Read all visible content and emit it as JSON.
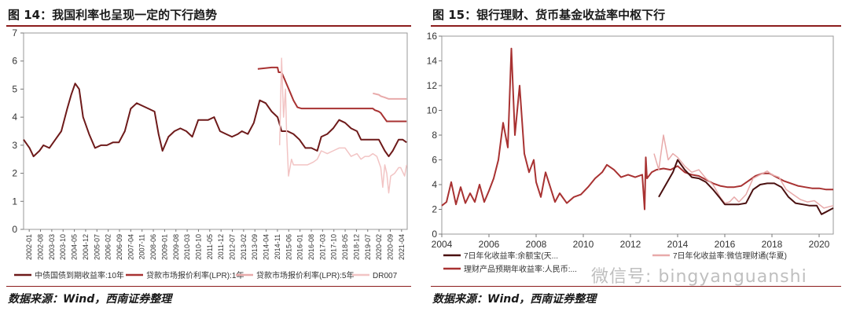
{
  "left": {
    "title": "图 14：我国利率也呈现一定的下行趋势",
    "source": "数据来源：Wind，西南证券整理"
  },
  "right": {
    "title": "图 15：银行理财、货币基金收益率中枢下行",
    "source": "数据来源：Wind，西南证券整理"
  },
  "watermark": "微信号: bingyanguanshi",
  "colors": {
    "accent": "#8b1c1c",
    "dark_red": "#6e1a1a",
    "red": "#a83232",
    "pink": "#e8aaaa",
    "light_pink": "#f2c4c4"
  },
  "chart_data": [
    {
      "type": "line",
      "ylim": [
        0,
        7
      ],
      "yticks": [
        0,
        1,
        2,
        3,
        4,
        5,
        6,
        7
      ],
      "xlim": [
        2002.0,
        2021.33
      ],
      "xtick_labels": [
        "2002-01",
        "2002-08",
        "2003-03",
        "2003-10",
        "2004-05",
        "2004-12",
        "2005-07",
        "2006-02",
        "2006-09",
        "2007-04",
        "2007-11",
        "2008-06",
        "2009-01",
        "2009-08",
        "2010-03",
        "2010-10",
        "2011-05",
        "2011-12",
        "2012-07",
        "2013-02",
        "2013-09",
        "2014-04",
        "2014-11",
        "2015-06",
        "2016-01",
        "2016-08",
        "2017-03",
        "2017-10",
        "2018-05",
        "2018-12",
        "2019-07",
        "2020-02",
        "2020-09",
        "2021-04"
      ],
      "series": [
        {
          "name": "中债国债到期收益率:10年",
          "color": "#6e1a1a",
          "width": 2,
          "x": [
            2002.0,
            2002.3,
            2002.5,
            2002.8,
            2003.0,
            2003.3,
            2003.6,
            2003.9,
            2004.2,
            2004.4,
            2004.6,
            2004.8,
            2005.0,
            2005.3,
            2005.6,
            2005.9,
            2006.2,
            2006.5,
            2006.8,
            2007.1,
            2007.4,
            2007.7,
            2008.0,
            2008.3,
            2008.6,
            2008.8,
            2009.0,
            2009.3,
            2009.6,
            2009.9,
            2010.2,
            2010.5,
            2010.8,
            2011.0,
            2011.3,
            2011.6,
            2011.9,
            2012.2,
            2012.5,
            2012.8,
            2013.0,
            2013.3,
            2013.6,
            2013.9,
            2014.2,
            2014.5,
            2014.8,
            2015.0,
            2015.3,
            2015.6,
            2015.9,
            2016.2,
            2016.5,
            2016.8,
            2017.0,
            2017.3,
            2017.6,
            2017.9,
            2018.2,
            2018.5,
            2018.8,
            2019.0,
            2019.3,
            2019.6,
            2019.9,
            2020.2,
            2020.4,
            2020.6,
            2020.9,
            2021.1,
            2021.3
          ],
          "y": [
            3.2,
            2.9,
            2.6,
            2.8,
            3.0,
            2.9,
            3.2,
            3.5,
            4.3,
            4.8,
            5.2,
            5.0,
            4.0,
            3.4,
            2.9,
            3.0,
            3.0,
            3.1,
            3.1,
            3.5,
            4.3,
            4.5,
            4.4,
            4.3,
            4.2,
            3.4,
            2.8,
            3.3,
            3.5,
            3.6,
            3.5,
            3.3,
            3.9,
            3.9,
            3.9,
            4.0,
            3.5,
            3.4,
            3.3,
            3.4,
            3.5,
            3.4,
            3.8,
            4.6,
            4.5,
            4.2,
            4.0,
            3.5,
            3.5,
            3.4,
            3.2,
            2.9,
            2.9,
            2.8,
            3.3,
            3.4,
            3.6,
            3.9,
            3.8,
            3.6,
            3.5,
            3.2,
            3.2,
            3.2,
            3.2,
            2.8,
            2.6,
            2.8,
            3.2,
            3.2,
            3.1
          ]
        },
        {
          "name": "贷款市场报价利率(LPR):1年",
          "color": "#a83232",
          "width": 2,
          "x": [
            2013.8,
            2014.5,
            2014.8,
            2014.85,
            2015.0,
            2015.15,
            2015.3,
            2015.45,
            2015.6,
            2015.8,
            2016.0,
            2019.6,
            2019.7,
            2019.9,
            2020.0,
            2020.1,
            2020.3,
            2021.3
          ],
          "y": [
            5.72,
            5.77,
            5.77,
            5.6,
            5.6,
            5.35,
            5.1,
            4.85,
            4.6,
            4.35,
            4.31,
            4.31,
            4.25,
            4.2,
            4.15,
            4.05,
            3.85,
            3.85
          ]
        },
        {
          "name": "贷款市场报价利率(LPR):5年",
          "color": "#e8aaaa",
          "width": 2,
          "x": [
            2019.6,
            2019.9,
            2020.0,
            2020.2,
            2020.4,
            2021.3
          ],
          "y": [
            4.85,
            4.8,
            4.75,
            4.7,
            4.65,
            4.65
          ]
        },
        {
          "name": "DR007",
          "color": "#f2c4c4",
          "width": 1.5,
          "x": [
            2014.9,
            2015.0,
            2015.1,
            2015.2,
            2015.25,
            2015.35,
            2015.5,
            2015.6,
            2015.8,
            2016.0,
            2016.3,
            2016.6,
            2016.8,
            2017.0,
            2017.3,
            2017.6,
            2017.9,
            2018.2,
            2018.5,
            2018.8,
            2019.0,
            2019.2,
            2019.4,
            2019.6,
            2019.8,
            2020.0,
            2020.1,
            2020.2,
            2020.3,
            2020.4,
            2020.5,
            2020.7,
            2020.9,
            2021.0,
            2021.2,
            2021.3
          ],
          "y": [
            3.0,
            6.1,
            4.0,
            5.0,
            3.5,
            1.9,
            2.5,
            2.3,
            2.3,
            2.3,
            2.3,
            2.4,
            2.5,
            2.8,
            2.7,
            2.8,
            2.9,
            2.9,
            2.6,
            2.7,
            2.5,
            2.6,
            2.6,
            2.7,
            2.6,
            2.2,
            1.5,
            2.3,
            2.0,
            1.3,
            1.9,
            2.0,
            2.2,
            2.2,
            1.9,
            2.3
          ]
        }
      ]
    },
    {
      "type": "line",
      "ylim": [
        0,
        16
      ],
      "yticks": [
        0,
        2,
        4,
        6,
        8,
        10,
        12,
        14,
        16
      ],
      "xlim": [
        2004.0,
        2020.6
      ],
      "xtick_labels": [
        "2004",
        "2006",
        "2008",
        "2010",
        "2012",
        "2014",
        "2016",
        "2018",
        "2020"
      ],
      "xtick_values": [
        2004,
        2006,
        2008,
        2010,
        2012,
        2014,
        2016,
        2018,
        2020
      ],
      "series": [
        {
          "name": "7日年化收益率:余额宝(天...",
          "color": "#4a1010",
          "width": 2,
          "x": [
            2013.2,
            2013.5,
            2013.8,
            2014.0,
            2014.3,
            2014.6,
            2014.9,
            2015.2,
            2015.5,
            2015.8,
            2016.0,
            2016.3,
            2016.6,
            2016.9,
            2017.2,
            2017.5,
            2017.8,
            2018.1,
            2018.4,
            2018.7,
            2019.0,
            2019.3,
            2019.6,
            2019.9,
            2020.1,
            2020.3,
            2020.6
          ],
          "y": [
            3.0,
            4.0,
            5.0,
            6.0,
            5.2,
            4.6,
            4.5,
            4.2,
            3.6,
            2.9,
            2.4,
            2.4,
            2.4,
            2.5,
            3.6,
            4.0,
            4.1,
            4.1,
            3.8,
            3.0,
            2.5,
            2.4,
            2.3,
            2.3,
            1.6,
            1.8,
            2.1
          ]
        },
        {
          "name": "7日年化收益率:微信理财通(华夏)",
          "color": "#e8aaaa",
          "width": 1.5,
          "x": [
            2013.0,
            2013.2,
            2013.4,
            2013.6,
            2013.8,
            2014.0,
            2014.3,
            2014.6,
            2014.9,
            2015.2,
            2015.5,
            2015.8,
            2016.0,
            2016.2,
            2016.4,
            2016.6,
            2016.9,
            2017.2,
            2017.5,
            2017.8,
            2018.0,
            2018.3,
            2018.6,
            2018.9,
            2019.2,
            2019.5,
            2019.8,
            2020.0,
            2020.2,
            2020.4,
            2020.6
          ],
          "y": [
            6.5,
            5.2,
            8.0,
            6.0,
            6.5,
            6.2,
            5.5,
            5.0,
            5.2,
            4.5,
            4.0,
            3.0,
            2.5,
            2.6,
            3.0,
            2.6,
            3.2,
            4.5,
            4.8,
            5.1,
            4.8,
            4.6,
            3.6,
            3.2,
            2.8,
            2.6,
            2.7,
            2.4,
            2.1,
            2.2,
            2.3
          ]
        },
        {
          "name": "理财产品预期年收益率:人民币:...",
          "color": "#a83232",
          "width": 2,
          "x": [
            2004.0,
            2004.2,
            2004.4,
            2004.6,
            2004.8,
            2005.0,
            2005.2,
            2005.4,
            2005.6,
            2005.8,
            2006.0,
            2006.2,
            2006.4,
            2006.6,
            2006.8,
            2006.95,
            2007.1,
            2007.3,
            2007.5,
            2007.7,
            2007.9,
            2008.0,
            2008.2,
            2008.4,
            2008.6,
            2008.8,
            2009.0,
            2009.3,
            2009.6,
            2009.9,
            2010.2,
            2010.5,
            2010.8,
            2011.0,
            2011.3,
            2011.6,
            2011.9,
            2012.2,
            2012.5,
            2012.6,
            2012.65,
            2012.7,
            2012.9,
            2013.1,
            2013.4,
            2013.7,
            2014.0,
            2014.3,
            2014.6,
            2014.9,
            2015.2,
            2015.5,
            2015.8,
            2016.1,
            2016.4,
            2016.7,
            2017.0,
            2017.3,
            2017.6,
            2017.9,
            2018.2,
            2018.5,
            2018.8,
            2019.1,
            2019.4,
            2019.7,
            2020.0,
            2020.3,
            2020.6
          ],
          "y": [
            2.3,
            2.6,
            4.2,
            2.4,
            3.8,
            2.5,
            3.3,
            2.6,
            4.0,
            2.6,
            3.5,
            4.5,
            6.0,
            9.0,
            7.0,
            15.0,
            8.0,
            12.0,
            6.5,
            5.0,
            6.0,
            4.2,
            3.0,
            5.0,
            3.8,
            2.6,
            3.3,
            2.5,
            3.0,
            3.2,
            3.8,
            4.5,
            5.0,
            5.6,
            5.2,
            4.6,
            4.8,
            4.6,
            4.8,
            2.0,
            6.2,
            4.5,
            5.0,
            5.2,
            5.3,
            5.2,
            5.5,
            5.0,
            4.8,
            4.7,
            4.4,
            4.1,
            3.9,
            3.8,
            3.8,
            3.9,
            4.3,
            4.7,
            4.9,
            4.9,
            4.6,
            4.3,
            4.1,
            3.9,
            3.8,
            3.7,
            3.7,
            3.6,
            3.6
          ]
        }
      ]
    }
  ],
  "legends": {
    "left": [
      "中债国债到期收益率:10年",
      "贷款市场报价利率(LPR):1年",
      "贷款市场报价利率(LPR):5年",
      "DR007"
    ],
    "right": [
      "7日年化收益率:余额宝(天...",
      "7日年化收益率:微信理财通(华夏)",
      "理财产品预期年收益率:人民币:..."
    ]
  }
}
